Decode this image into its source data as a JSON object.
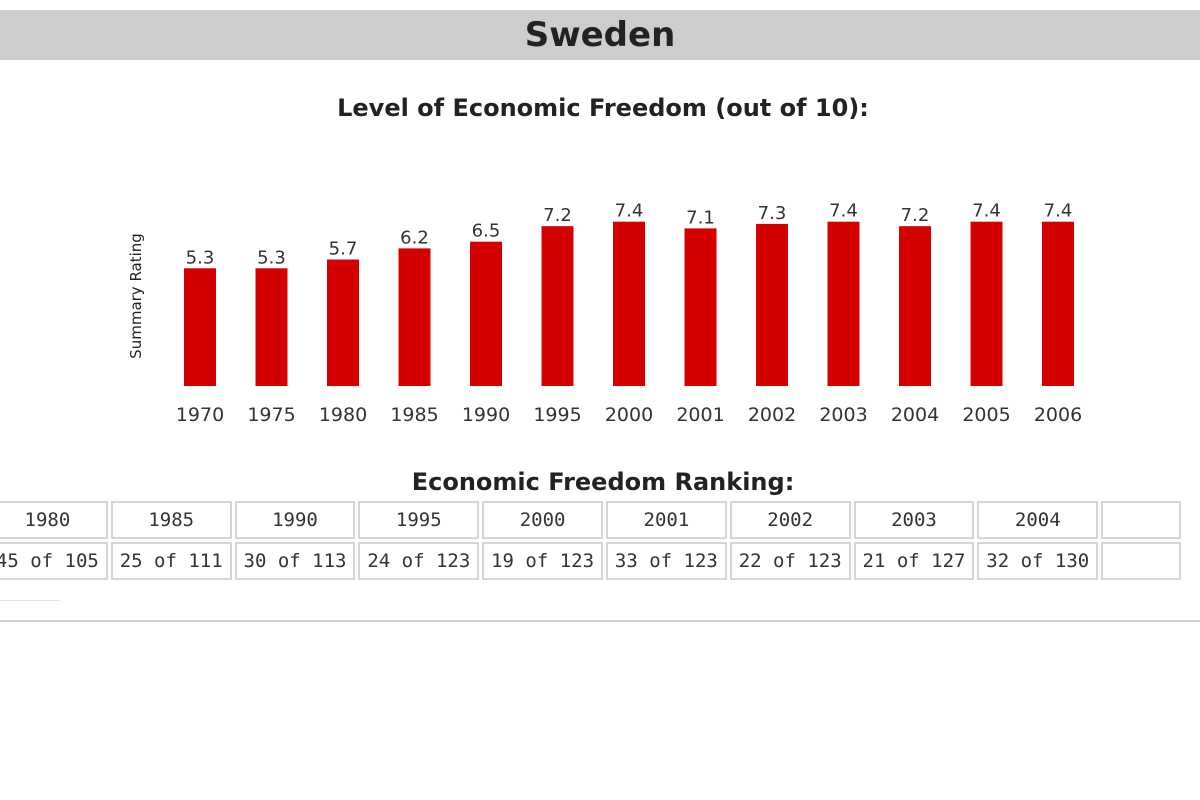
{
  "page": {
    "country": "Sweden"
  },
  "chart_data": {
    "type": "bar",
    "title": "Level of Economic Freedom (out of 10):",
    "xlabel": "",
    "ylabel": "Summary Rating",
    "ylim": [
      0,
      10
    ],
    "grid": false,
    "bar_color": "#d40000",
    "categories": [
      "1970",
      "1975",
      "1980",
      "1985",
      "1990",
      "1995",
      "2000",
      "2001",
      "2002",
      "2003",
      "2004",
      "2005",
      "2006"
    ],
    "values": [
      5.3,
      5.3,
      5.7,
      6.2,
      6.5,
      7.2,
      7.4,
      7.1,
      7.3,
      7.4,
      7.2,
      7.4,
      7.4
    ]
  },
  "ranking": {
    "title": "Economic Freedom Ranking:",
    "years": [
      "1980",
      "1985",
      "1990",
      "1995",
      "2000",
      "2001",
      "2002",
      "2003",
      "2004",
      ""
    ],
    "ranks": [
      "45 of 105",
      "25 of 111",
      "30 of 113",
      "24 of 123",
      "19 of 123",
      "33 of 123",
      "22 of 123",
      "21 of 127",
      "32 of 130",
      ""
    ]
  },
  "colors": {
    "title_bar": "#cdcdcd",
    "bar": "#d40000",
    "cell_border": "#d6d6d6"
  }
}
